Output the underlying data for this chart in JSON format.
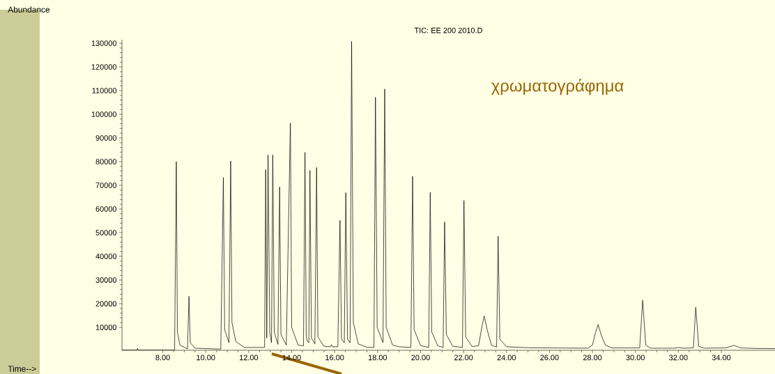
{
  "chart_data": {
    "type": "line",
    "title": "TIC: EE 200  2010.D",
    "annotations": [
      "Abundance",
      "Time-->",
      "χρωματογράφημα"
    ],
    "x": [
      6.1,
      6.8,
      6.82,
      6.86,
      8.55,
      8.63,
      8.68,
      8.8,
      9.15,
      9.22,
      9.28,
      9.5,
      10.7,
      10.82,
      10.88,
      11.08,
      11.16,
      11.22,
      11.4,
      11.8,
      12.74,
      12.79,
      12.84,
      12.9,
      12.98,
      13.06,
      13.12,
      13.19,
      13.36,
      13.44,
      13.5,
      13.75,
      13.94,
      14.0,
      14.3,
      14.55,
      14.62,
      14.68,
      14.74,
      14.8,
      14.85,
      14.92,
      15.08,
      15.16,
      15.22,
      15.5,
      15.8,
      15.85,
      15.9,
      16.15,
      16.25,
      16.32,
      16.45,
      16.52,
      16.6,
      16.72,
      16.79,
      16.87,
      17.1,
      17.5,
      17.83,
      17.9,
      17.98,
      18.25,
      18.33,
      18.4,
      18.7,
      19.0,
      19.55,
      19.63,
      19.7,
      20.0,
      20.38,
      20.45,
      20.52,
      20.8,
      21.05,
      21.12,
      21.2,
      21.5,
      21.95,
      22.02,
      22.1,
      22.4,
      22.7,
      22.85,
      22.96,
      23.1,
      23.3,
      23.54,
      23.61,
      23.69,
      24.0,
      25.0,
      26.0,
      27.8,
      28.0,
      28.15,
      28.27,
      28.4,
      28.6,
      28.9,
      29.5,
      30.2,
      30.34,
      30.48,
      30.7,
      31.8,
      32.04,
      32.2,
      32.7,
      32.81,
      32.95,
      33.2,
      34.2,
      34.6,
      34.9,
      35.5,
      36.5
    ],
    "series": [
      {
        "color": "#000000",
        "values": [
          400,
          400,
          1200,
          400,
          400,
          80000,
          8000,
          2500,
          900,
          23100,
          3500,
          1200,
          800,
          73300,
          9000,
          3500,
          80200,
          12000,
          4000,
          1500,
          1500,
          76600,
          5500,
          82800,
          8000,
          3500,
          82800,
          8000,
          2800,
          69300,
          7000,
          2500,
          96300,
          10000,
          2500,
          2200,
          83900,
          6000,
          4000,
          3500,
          76300,
          5500,
          3000,
          77500,
          6000,
          2000,
          1800,
          2700,
          1800,
          1800,
          55200,
          5000,
          3500,
          66900,
          5000,
          3500,
          130800,
          12000,
          3000,
          1600,
          1500,
          107200,
          10000,
          3500,
          110700,
          10000,
          2500,
          1800,
          1500,
          73800,
          9000,
          2300,
          1500,
          67000,
          8000,
          2200,
          1500,
          54500,
          7000,
          2000,
          1500,
          63600,
          6000,
          1900,
          2200,
          10000,
          14800,
          9000,
          2500,
          1600,
          48500,
          5000,
          1800,
          1400,
          1300,
          1200,
          2500,
          8000,
          11200,
          7000,
          2500,
          1300,
          1300,
          1300,
          21400,
          2500,
          1200,
          1200,
          1500,
          1200,
          1300,
          18500,
          2000,
          1200,
          1300,
          2400,
          1300,
          1100,
          1000
        ]
      }
    ],
    "xlim": [
      6.1,
      36.5
    ],
    "ylim": [
      300,
      131500
    ],
    "xticks": [
      {
        "value": 8,
        "label": "8.00"
      },
      {
        "value": 10,
        "label": "10.00"
      },
      {
        "value": 12,
        "label": "12.00"
      },
      {
        "value": 14,
        "label": "14.00"
      },
      {
        "value": 16,
        "label": "16.00"
      },
      {
        "value": 18,
        "label": "18.00"
      },
      {
        "value": 20,
        "label": "20.00"
      },
      {
        "value": 22,
        "label": "22.00"
      },
      {
        "value": 24,
        "label": "24.00"
      },
      {
        "value": 26,
        "label": "26.00"
      },
      {
        "value": 28,
        "label": "28.00"
      },
      {
        "value": 30,
        "label": "30.00"
      },
      {
        "value": 32,
        "label": "32.00"
      },
      {
        "value": 34,
        "label": "34.00"
      }
    ],
    "yticks": [
      10000,
      20000,
      30000,
      40000,
      50000,
      60000,
      70000,
      80000,
      90000,
      100000,
      110000,
      120000,
      130000
    ]
  }
}
